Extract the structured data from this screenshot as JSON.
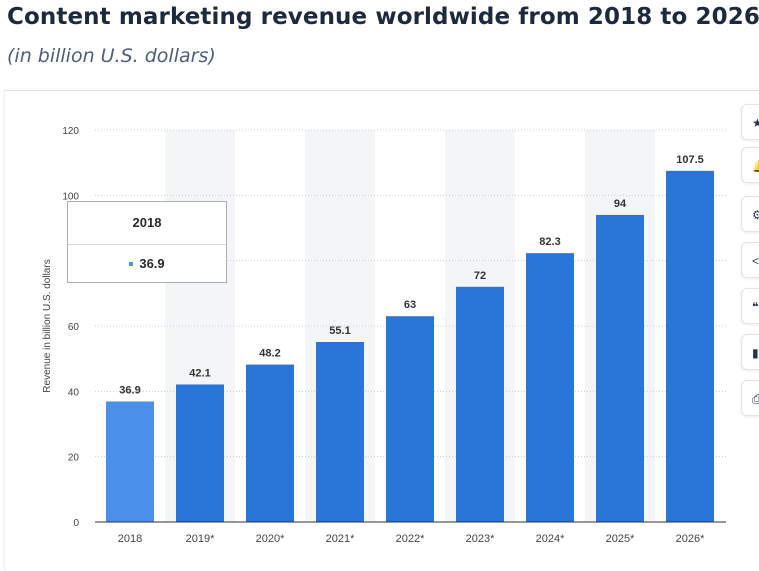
{
  "title": "Content marketing revenue worldwide from 2018 to 2026",
  "subtitle": "(in billion U.S. dollars)",
  "tooltip": {
    "category": "2018",
    "value": "36.9"
  },
  "side_tools": [
    "star-icon",
    "bell-icon",
    "gear-icon",
    "share-icon",
    "quote-icon",
    "chart-type-icon",
    "print-icon"
  ],
  "colors": {
    "bar": "#2a75d8",
    "bar_highlight": "#4a90ea",
    "band": "#f4f5f7"
  },
  "chart_data": {
    "type": "bar",
    "title": "Content marketing revenue worldwide from 2018 to 2026",
    "xlabel": "",
    "ylabel": "Revenue in billion U.S. dollars",
    "ylim": [
      0,
      120
    ],
    "yticks": [
      0,
      20,
      40,
      60,
      80,
      100,
      120
    ],
    "categories": [
      "2018",
      "2019*",
      "2020*",
      "2021*",
      "2022*",
      "2023*",
      "2024*",
      "2025*",
      "2026*"
    ],
    "values": [
      36.9,
      42.1,
      48.2,
      55.1,
      63,
      72,
      82.3,
      94,
      107.5
    ],
    "labels": [
      "36.9",
      "42.1",
      "48.2",
      "55.1",
      "63",
      "72",
      "82.3",
      "94",
      "107.5"
    ],
    "highlighted_index": 0,
    "grid": true,
    "legend": "none"
  }
}
